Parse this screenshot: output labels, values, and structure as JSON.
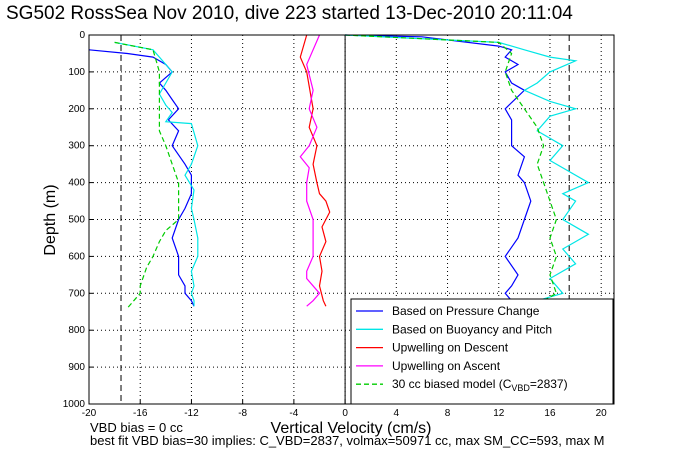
{
  "chart_data": {
    "type": "line",
    "title": "SG502 RossSea Nov 2010, dive 223 started 13-Dec-2010 20:11:04",
    "xlabel": "Vertical Velocity (cm/s)",
    "ylabel": "Depth (m)",
    "xlim": [
      -20,
      21
    ],
    "ylim": [
      0,
      1000
    ],
    "y_reversed": true,
    "grid": true,
    "xticks": [
      -20,
      -16,
      -12,
      -8,
      -4,
      0,
      4,
      8,
      12,
      16,
      20
    ],
    "yticks": [
      0,
      100,
      200,
      300,
      400,
      500,
      600,
      700,
      800,
      900,
      1000
    ],
    "vertical_reference_lines": [
      -17.5,
      17.5,
      0
    ],
    "legend_position": "bottom-right",
    "legend": [
      {
        "label": "Based on Pressure Change",
        "color": "#0000ff",
        "style": "solid"
      },
      {
        "label": "Based on Buoyancy and Pitch",
        "color": "#00e6e6",
        "style": "solid"
      },
      {
        "label": "Upwelling on Descent",
        "color": "#ff0000",
        "style": "solid"
      },
      {
        "label": "Upwelling on Ascent",
        "color": "#ff00ff",
        "style": "solid"
      },
      {
        "label": "30 cc biased model (C",
        "label_sub": "VBD",
        "label_tail": "=2837)",
        "color": "#00cc00",
        "style": "dashed"
      }
    ],
    "series": [
      {
        "color": "#0000ff",
        "x": [
          -20,
          -17,
          -15,
          -14,
          -13.5,
          -14.5,
          -14,
          -13.5,
          -13,
          -13.8,
          -13,
          -13.5,
          -12.5,
          -12,
          -12,
          -12.5,
          -13,
          -13.5,
          -13,
          -13,
          -12.5,
          -12.5,
          -12,
          -11.8
        ],
        "y": [
          40,
          50,
          60,
          80,
          100,
          130,
          150,
          175,
          200,
          230,
          260,
          300,
          350,
          380,
          430,
          470,
          500,
          550,
          600,
          650,
          680,
          700,
          720,
          735
        ]
      },
      {
        "color": "#00e6e6",
        "x": [
          -18,
          -15,
          -14.5,
          -14,
          -13.5,
          -14,
          -14.5,
          -14,
          -13.5,
          -14,
          -12,
          -11.5,
          -12,
          -12.5,
          -11.8,
          -12,
          -11.8,
          -11.5,
          -11.5,
          -12,
          -11.8,
          -12,
          -11.8,
          -11.8
        ],
        "y": [
          20,
          40,
          60,
          80,
          100,
          130,
          160,
          190,
          210,
          235,
          240,
          300,
          350,
          380,
          420,
          470,
          500,
          550,
          600,
          640,
          680,
          700,
          720,
          735
        ]
      },
      {
        "color": "#00cc00",
        "x": [
          -18,
          -15,
          -14.5,
          -14.5,
          -14.5,
          -14,
          -13.5,
          -13,
          -13,
          -13,
          -13,
          -14,
          -14.5,
          -15,
          -15.5,
          -16,
          -16,
          -16.5,
          -17
        ],
        "y": [
          20,
          40,
          100,
          200,
          260,
          300,
          350,
          400,
          450,
          480,
          500,
          530,
          560,
          600,
          630,
          680,
          700,
          720,
          740
        ]
      },
      {
        "color": "#ff0000",
        "x": [
          -3,
          -3.5,
          -3,
          -2.5,
          -2.8,
          -2.2,
          -2.5,
          -2.2,
          -2,
          -1.5,
          -1.2,
          -1.8,
          -1.5,
          -2,
          -1.8,
          -2,
          -1.7,
          -1.5
        ],
        "y": [
          0,
          60,
          100,
          200,
          250,
          300,
          350,
          400,
          430,
          450,
          480,
          520,
          560,
          600,
          640,
          680,
          720,
          735
        ]
      },
      {
        "color": "#ff00ff",
        "x": [
          -2,
          -3,
          -2.5,
          -2.8,
          -2.2,
          -2.8,
          -3.5,
          -2.8,
          -3,
          -3,
          -2.5,
          -2.5,
          -2.5,
          -3,
          -3,
          -2,
          -2.5,
          -3
        ],
        "y": [
          0,
          80,
          150,
          200,
          250,
          300,
          330,
          360,
          400,
          450,
          500,
          550,
          600,
          640,
          660,
          700,
          720,
          735
        ]
      },
      {
        "color": "#0000ff",
        "x": [
          0,
          6,
          12,
          13,
          12.5,
          13.5,
          12.5,
          13,
          14,
          12.5,
          13,
          13,
          13,
          14,
          13.5,
          14,
          14.5,
          14,
          13.5,
          12.5,
          13.5,
          13,
          12.5,
          13
        ],
        "y": [
          0,
          5,
          30,
          40,
          60,
          80,
          100,
          130,
          150,
          200,
          230,
          270,
          300,
          330,
          380,
          400,
          450,
          500,
          550,
          600,
          650,
          680,
          700,
          720
        ]
      },
      {
        "color": "#00e6e6",
        "x": [
          0,
          12,
          14,
          16,
          18,
          16,
          15,
          14,
          16,
          18,
          16,
          15,
          17,
          16,
          19,
          17,
          18,
          17,
          19,
          17,
          18,
          16,
          17,
          15
        ],
        "y": [
          0,
          20,
          40,
          60,
          70,
          100,
          130,
          150,
          180,
          200,
          220,
          260,
          300,
          340,
          400,
          430,
          450,
          500,
          540,
          580,
          620,
          660,
          700,
          720
        ]
      },
      {
        "color": "#00cc00",
        "x": [
          0,
          12,
          13,
          12.5,
          13,
          14,
          15,
          15.5,
          15,
          15.5,
          16,
          16.5,
          16,
          16.5,
          16,
          16.5,
          15.5,
          15
        ],
        "y": [
          0,
          20,
          50,
          100,
          150,
          200,
          250,
          300,
          350,
          400,
          450,
          500,
          550,
          600,
          650,
          700,
          720,
          740
        ]
      }
    ]
  },
  "footer": {
    "line1": "VBD bias = 0 cc",
    "line2": "best fit VBD bias=30 implies: C_VBD=2837, volmax=50971 cc, max SM_CC=593, max M"
  }
}
